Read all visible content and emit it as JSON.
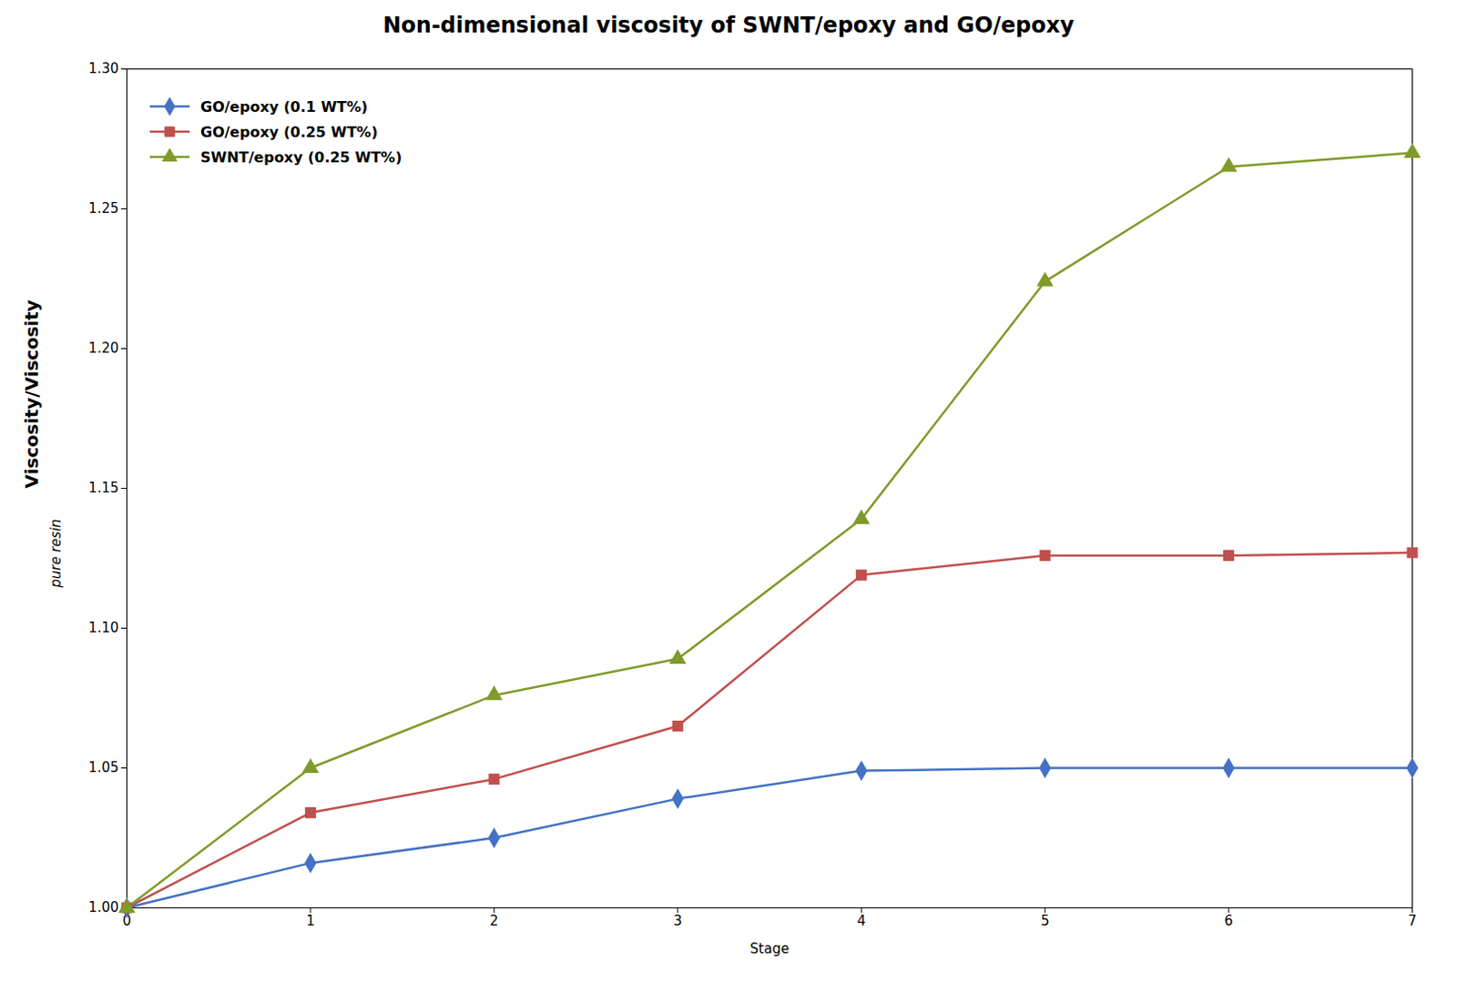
{
  "chart_data": {
    "type": "line",
    "title": "Non-dimensional viscosity of SWNT/epoxy and GO/epoxy",
    "xlabel": "Stage",
    "ylabel": "Viscosity/Viscosity",
    "ylabel_subscript": "pure resin",
    "x": [
      0,
      1,
      2,
      3,
      4,
      5,
      6,
      7
    ],
    "xlim": [
      0,
      7
    ],
    "xticks": [
      0,
      1,
      2,
      3,
      4,
      5,
      6,
      7
    ],
    "ylim": [
      1.0,
      1.3
    ],
    "yticks": [
      {
        "value": 1.0,
        "label": "1.00"
      },
      1.05,
      {
        "value": 1.1,
        "label": "1.10"
      },
      1.15,
      {
        "value": 1.2,
        "label": "1.20"
      },
      1.25,
      {
        "value": 1.3,
        "label": "1.30"
      }
    ],
    "series": [
      {
        "name": "GO/epoxy (0.1 WT%)",
        "color": "#4472C4",
        "marker": "diamond",
        "values": [
          1.0,
          1.016,
          1.025,
          1.039,
          1.049,
          1.05,
          1.05,
          1.05
        ]
      },
      {
        "name": "GO/epoxy (0.25 WT%)",
        "color": "#C0504D",
        "marker": "square",
        "values": [
          1.0,
          1.034,
          1.046,
          1.065,
          1.119,
          1.126,
          1.126,
          1.127
        ]
      },
      {
        "name": "SWNT/epoxy (0.25 WT%)",
        "color": "#7F9B2A",
        "marker": "triangle",
        "values": [
          1.0,
          1.05,
          1.076,
          1.089,
          1.139,
          1.224,
          1.265,
          1.27
        ]
      }
    ],
    "legend": "upper left",
    "grid": false
  }
}
